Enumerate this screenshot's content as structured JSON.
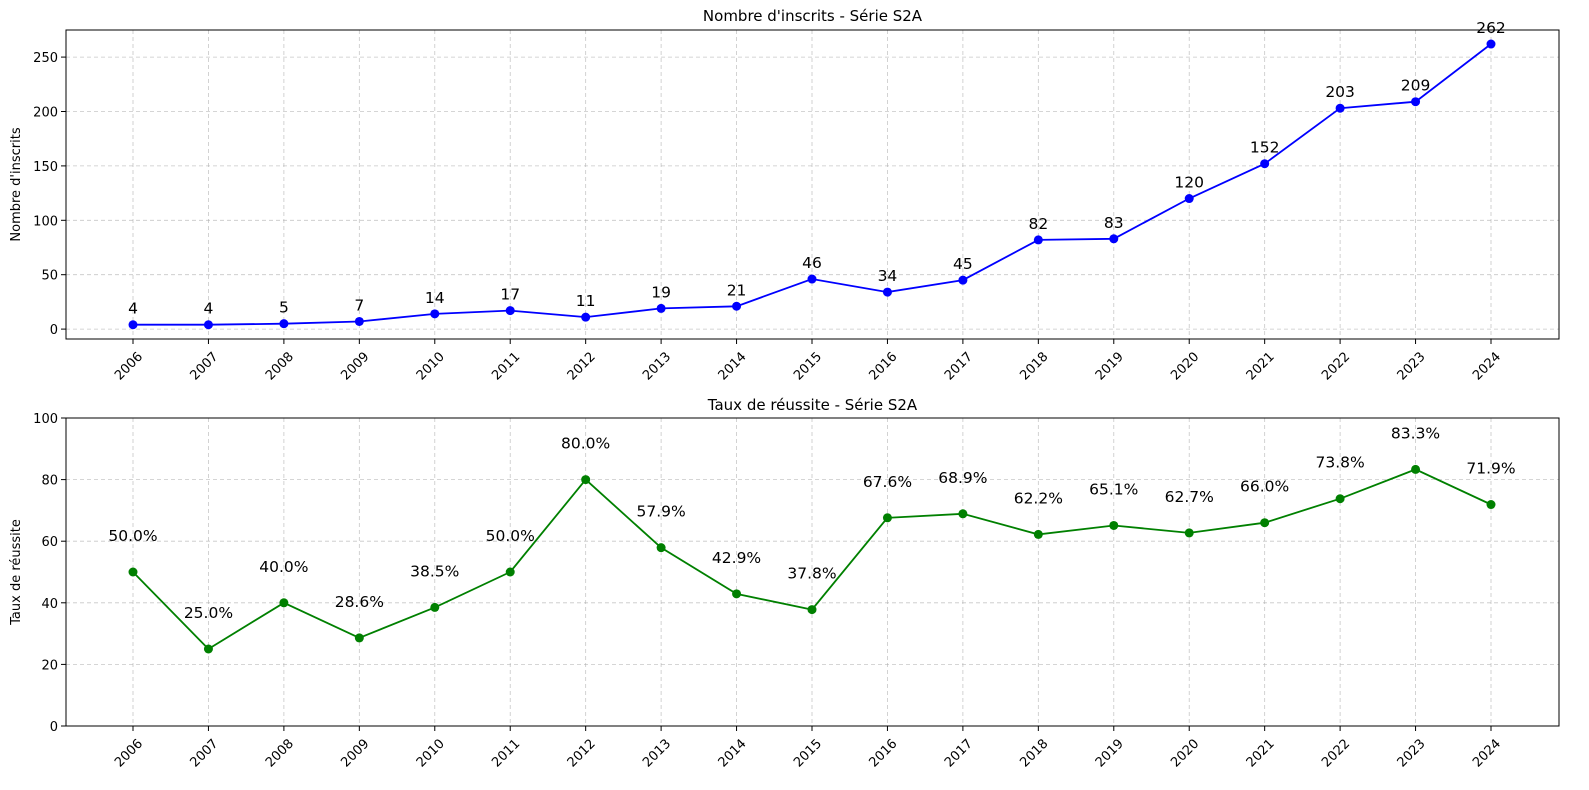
{
  "chart_data": [
    {
      "type": "line",
      "title": "Nombre d'inscrits - Série S2A",
      "xlabel": "",
      "ylabel": "Nombre d'inscrits",
      "categories": [
        "2006",
        "2007",
        "2008",
        "2009",
        "2010",
        "2011",
        "2012",
        "2013",
        "2014",
        "2015",
        "2016",
        "2017",
        "2018",
        "2019",
        "2020",
        "2021",
        "2022",
        "2023",
        "2024"
      ],
      "series": [
        {
          "values": [
            4,
            4,
            5,
            7,
            14,
            17,
            11,
            19,
            21,
            46,
            34,
            45,
            82,
            83,
            120,
            152,
            203,
            209,
            262
          ],
          "color": "#0000ff",
          "marker": "circle"
        }
      ],
      "data_labels": [
        "4",
        "4",
        "5",
        "7",
        "14",
        "17",
        "11",
        "19",
        "21",
        "46",
        "34",
        "45",
        "82",
        "83",
        "120",
        "152",
        "203",
        "209",
        "262"
      ],
      "ylim": [
        -9.1,
        274.9
      ],
      "yticks": [
        0,
        50,
        100,
        150,
        200,
        250
      ],
      "ytick_labels": [
        "0",
        "50",
        "100",
        "150",
        "200",
        "250"
      ],
      "grid": true,
      "legend": false
    },
    {
      "type": "line",
      "title": "Taux de réussite - Série S2A",
      "xlabel": "",
      "ylabel": "Taux de réussite",
      "categories": [
        "2006",
        "2007",
        "2008",
        "2009",
        "2010",
        "2011",
        "2012",
        "2013",
        "2014",
        "2015",
        "2016",
        "2017",
        "2018",
        "2019",
        "2020",
        "2021",
        "2022",
        "2023",
        "2024"
      ],
      "series": [
        {
          "values": [
            50.0,
            25.0,
            40.0,
            28.6,
            38.5,
            50.0,
            80.0,
            57.9,
            42.9,
            37.8,
            67.6,
            68.9,
            62.2,
            65.1,
            62.7,
            66.0,
            73.8,
            83.3,
            71.9
          ],
          "color": "#008000",
          "marker": "circle"
        }
      ],
      "data_labels": [
        "50.0%",
        "25.0%",
        "40.0%",
        "28.6%",
        "38.5%",
        "50.0%",
        "80.0%",
        "57.9%",
        "42.9%",
        "37.8%",
        "67.6%",
        "68.9%",
        "62.2%",
        "65.1%",
        "62.7%",
        "66.0%",
        "73.8%",
        "83.3%",
        "71.9%"
      ],
      "ylim": [
        0,
        100
      ],
      "yticks": [
        0,
        20,
        40,
        60,
        80,
        100
      ],
      "ytick_labels": [
        "0",
        "20",
        "40",
        "60",
        "80",
        "100"
      ],
      "grid": true,
      "legend": false
    }
  ]
}
